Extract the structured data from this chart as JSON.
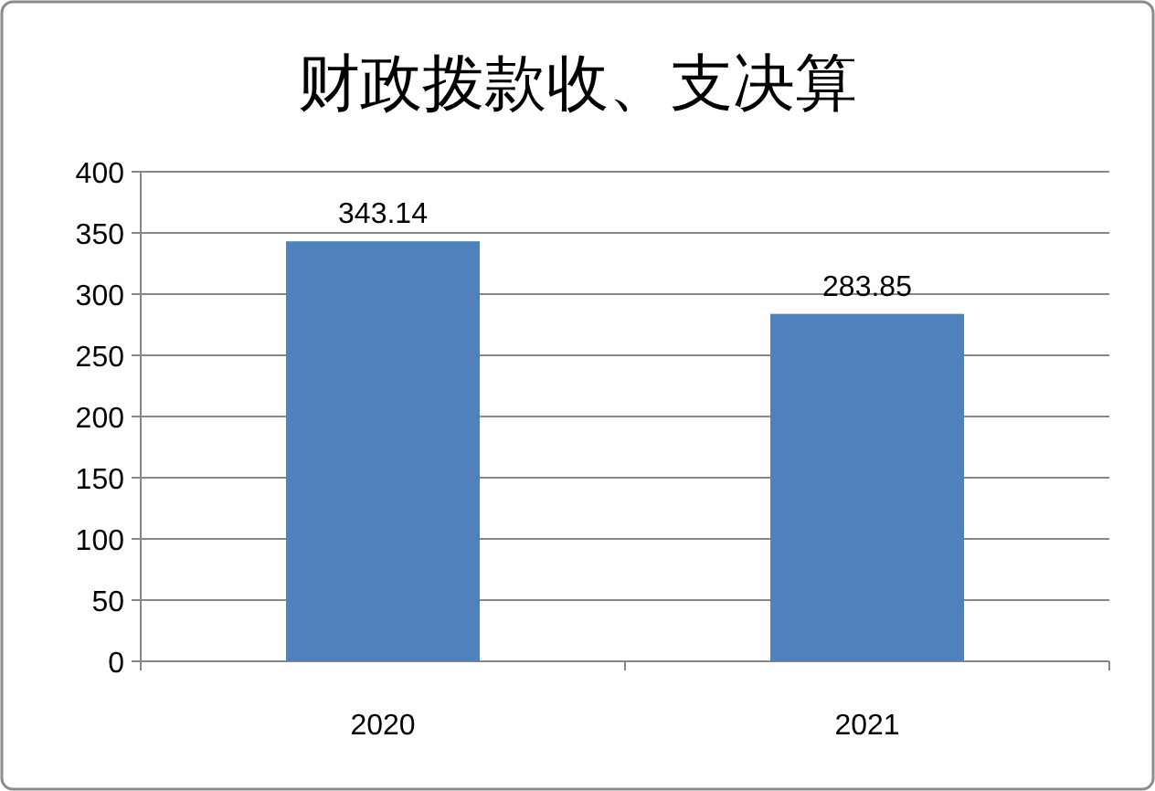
{
  "chart_data": {
    "type": "bar",
    "title": "财政拨款收、支决算",
    "categories": [
      "2020",
      "2021"
    ],
    "values": [
      343.14,
      283.85
    ],
    "color": "#4f81bd",
    "ylim": [
      0,
      400
    ],
    "yticks": [
      0,
      50,
      100,
      150,
      200,
      250,
      300,
      350,
      400
    ],
    "grid": "y",
    "data_labels": true
  }
}
